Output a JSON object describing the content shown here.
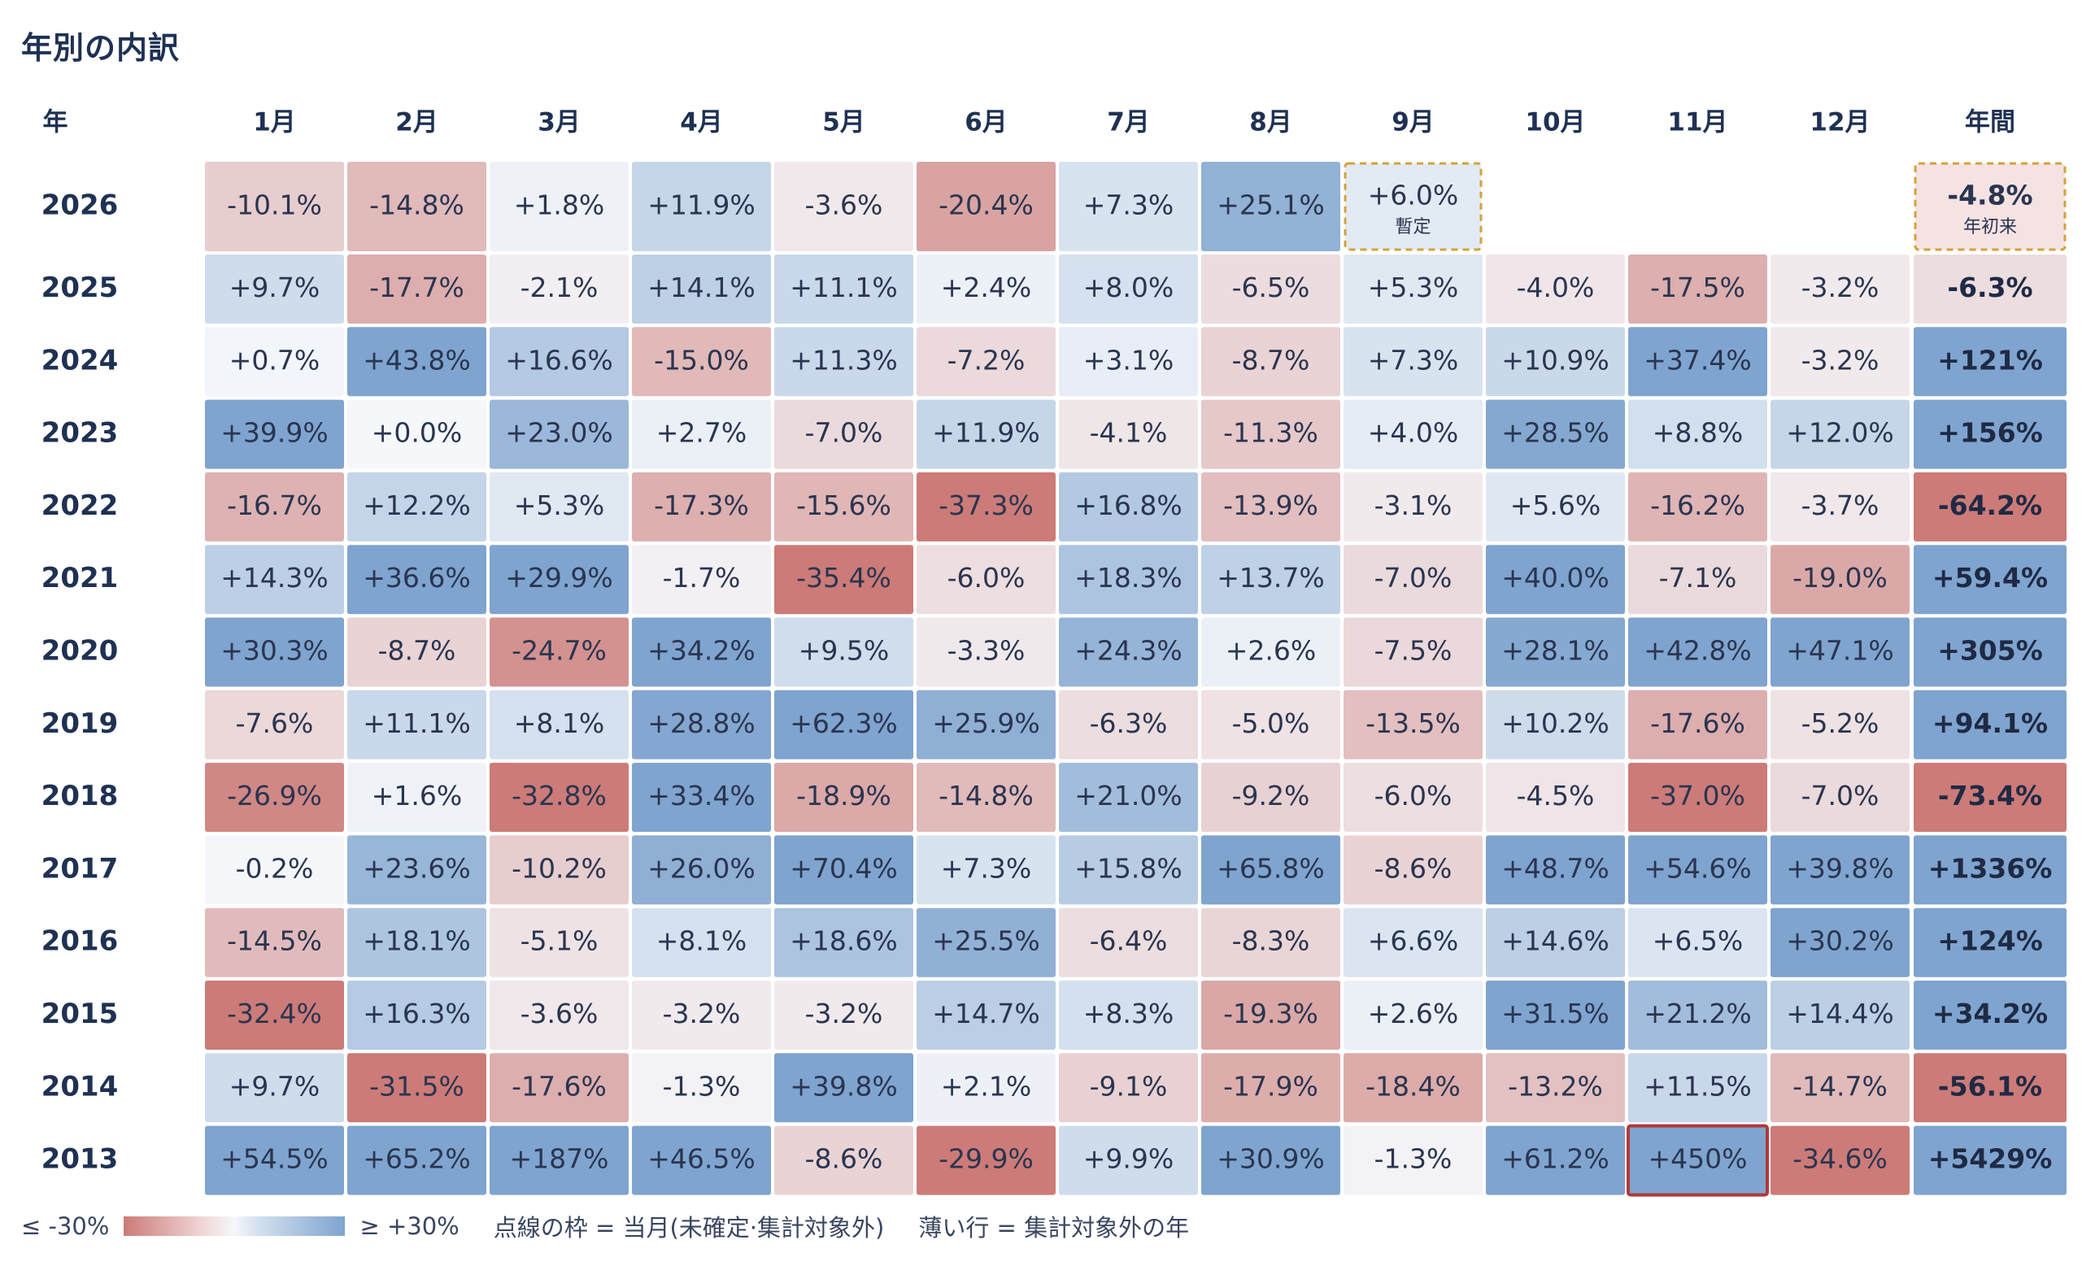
{
  "title": "年別の内訳",
  "legend": {
    "low_label": "≤ -30%",
    "high_label": "≥ +30%",
    "note_dashed": "点線の枠 = 当月(未確定·集計対象外)",
    "note_faded": "薄い行 = 集計対象外の年"
  },
  "colors": {
    "strong_negative": "#cc7b78",
    "neutral": "#f5f7fa",
    "strong_positive": "#7fa4cf",
    "header_text": "#1f3153",
    "dashed_border": "#d4a23a",
    "highlight_border": "#b03a3a"
  },
  "chart_data": {
    "type": "heatmap",
    "row_header": "年",
    "columns": [
      "1月",
      "2月",
      "3月",
      "4月",
      "5月",
      "6月",
      "7月",
      "8月",
      "9月",
      "10月",
      "11月",
      "12月"
    ],
    "annual_header": "年間",
    "color_scale": {
      "min": -30,
      "max": 30,
      "unit": "%"
    },
    "rows": [
      {
        "year": "2026",
        "values": [
          "-10.1%",
          "-14.8%",
          "+1.8%",
          "+11.9%",
          "-3.6%",
          "-20.4%",
          "+7.3%",
          "+25.1%",
          "+6.0%",
          null,
          null,
          null
        ],
        "annual": "-4.8%",
        "provisional_month_index": 8,
        "provisional_label": "暫定",
        "annual_label": "年初来"
      },
      {
        "year": "2025",
        "values": [
          "+9.7%",
          "-17.7%",
          "-2.1%",
          "+14.1%",
          "+11.1%",
          "+2.4%",
          "+8.0%",
          "-6.5%",
          "+5.3%",
          "-4.0%",
          "-17.5%",
          "-3.2%"
        ],
        "annual": "-6.3%"
      },
      {
        "year": "2024",
        "values": [
          "+0.7%",
          "+43.8%",
          "+16.6%",
          "-15.0%",
          "+11.3%",
          "-7.2%",
          "+3.1%",
          "-8.7%",
          "+7.3%",
          "+10.9%",
          "+37.4%",
          "-3.2%"
        ],
        "annual": "+121%"
      },
      {
        "year": "2023",
        "values": [
          "+39.9%",
          "+0.0%",
          "+23.0%",
          "+2.7%",
          "-7.0%",
          "+11.9%",
          "-4.1%",
          "-11.3%",
          "+4.0%",
          "+28.5%",
          "+8.8%",
          "+12.0%"
        ],
        "annual": "+156%"
      },
      {
        "year": "2022",
        "values": [
          "-16.7%",
          "+12.2%",
          "+5.3%",
          "-17.3%",
          "-15.6%",
          "-37.3%",
          "+16.8%",
          "-13.9%",
          "-3.1%",
          "+5.6%",
          "-16.2%",
          "-3.7%"
        ],
        "annual": "-64.2%"
      },
      {
        "year": "2021",
        "values": [
          "+14.3%",
          "+36.6%",
          "+29.9%",
          "-1.7%",
          "-35.4%",
          "-6.0%",
          "+18.3%",
          "+13.7%",
          "-7.0%",
          "+40.0%",
          "-7.1%",
          "-19.0%"
        ],
        "annual": "+59.4%"
      },
      {
        "year": "2020",
        "values": [
          "+30.3%",
          "-8.7%",
          "-24.7%",
          "+34.2%",
          "+9.5%",
          "-3.3%",
          "+24.3%",
          "+2.6%",
          "-7.5%",
          "+28.1%",
          "+42.8%",
          "+47.1%"
        ],
        "annual": "+305%"
      },
      {
        "year": "2019",
        "values": [
          "-7.6%",
          "+11.1%",
          "+8.1%",
          "+28.8%",
          "+62.3%",
          "+25.9%",
          "-6.3%",
          "-5.0%",
          "-13.5%",
          "+10.2%",
          "-17.6%",
          "-5.2%"
        ],
        "annual": "+94.1%"
      },
      {
        "year": "2018",
        "values": [
          "-26.9%",
          "+1.6%",
          "-32.8%",
          "+33.4%",
          "-18.9%",
          "-14.8%",
          "+21.0%",
          "-9.2%",
          "-6.0%",
          "-4.5%",
          "-37.0%",
          "-7.0%"
        ],
        "annual": "-73.4%"
      },
      {
        "year": "2017",
        "values": [
          "-0.2%",
          "+23.6%",
          "-10.2%",
          "+26.0%",
          "+70.4%",
          "+7.3%",
          "+15.8%",
          "+65.8%",
          "-8.6%",
          "+48.7%",
          "+54.6%",
          "+39.8%"
        ],
        "annual": "+1336%"
      },
      {
        "year": "2016",
        "values": [
          "-14.5%",
          "+18.1%",
          "-5.1%",
          "+8.1%",
          "+18.6%",
          "+25.5%",
          "-6.4%",
          "-8.3%",
          "+6.6%",
          "+14.6%",
          "+6.5%",
          "+30.2%"
        ],
        "annual": "+124%"
      },
      {
        "year": "2015",
        "values": [
          "-32.4%",
          "+16.3%",
          "-3.6%",
          "-3.2%",
          "-3.2%",
          "+14.7%",
          "+8.3%",
          "-19.3%",
          "+2.6%",
          "+31.5%",
          "+21.2%",
          "+14.4%"
        ],
        "annual": "+34.2%"
      },
      {
        "year": "2014",
        "values": [
          "+9.7%",
          "-31.5%",
          "-17.6%",
          "-1.3%",
          "+39.8%",
          "+2.1%",
          "-9.1%",
          "-17.9%",
          "-18.4%",
          "-13.2%",
          "+11.5%",
          "-14.7%"
        ],
        "annual": "-56.1%"
      },
      {
        "year": "2013",
        "values": [
          "+54.5%",
          "+65.2%",
          "+187%",
          "+46.5%",
          "-8.6%",
          "-29.9%",
          "+9.9%",
          "+30.9%",
          "-1.3%",
          "+61.2%",
          "+450%",
          "-34.6%"
        ],
        "annual": "+5429%",
        "highlight_month_index": 10
      }
    ]
  }
}
